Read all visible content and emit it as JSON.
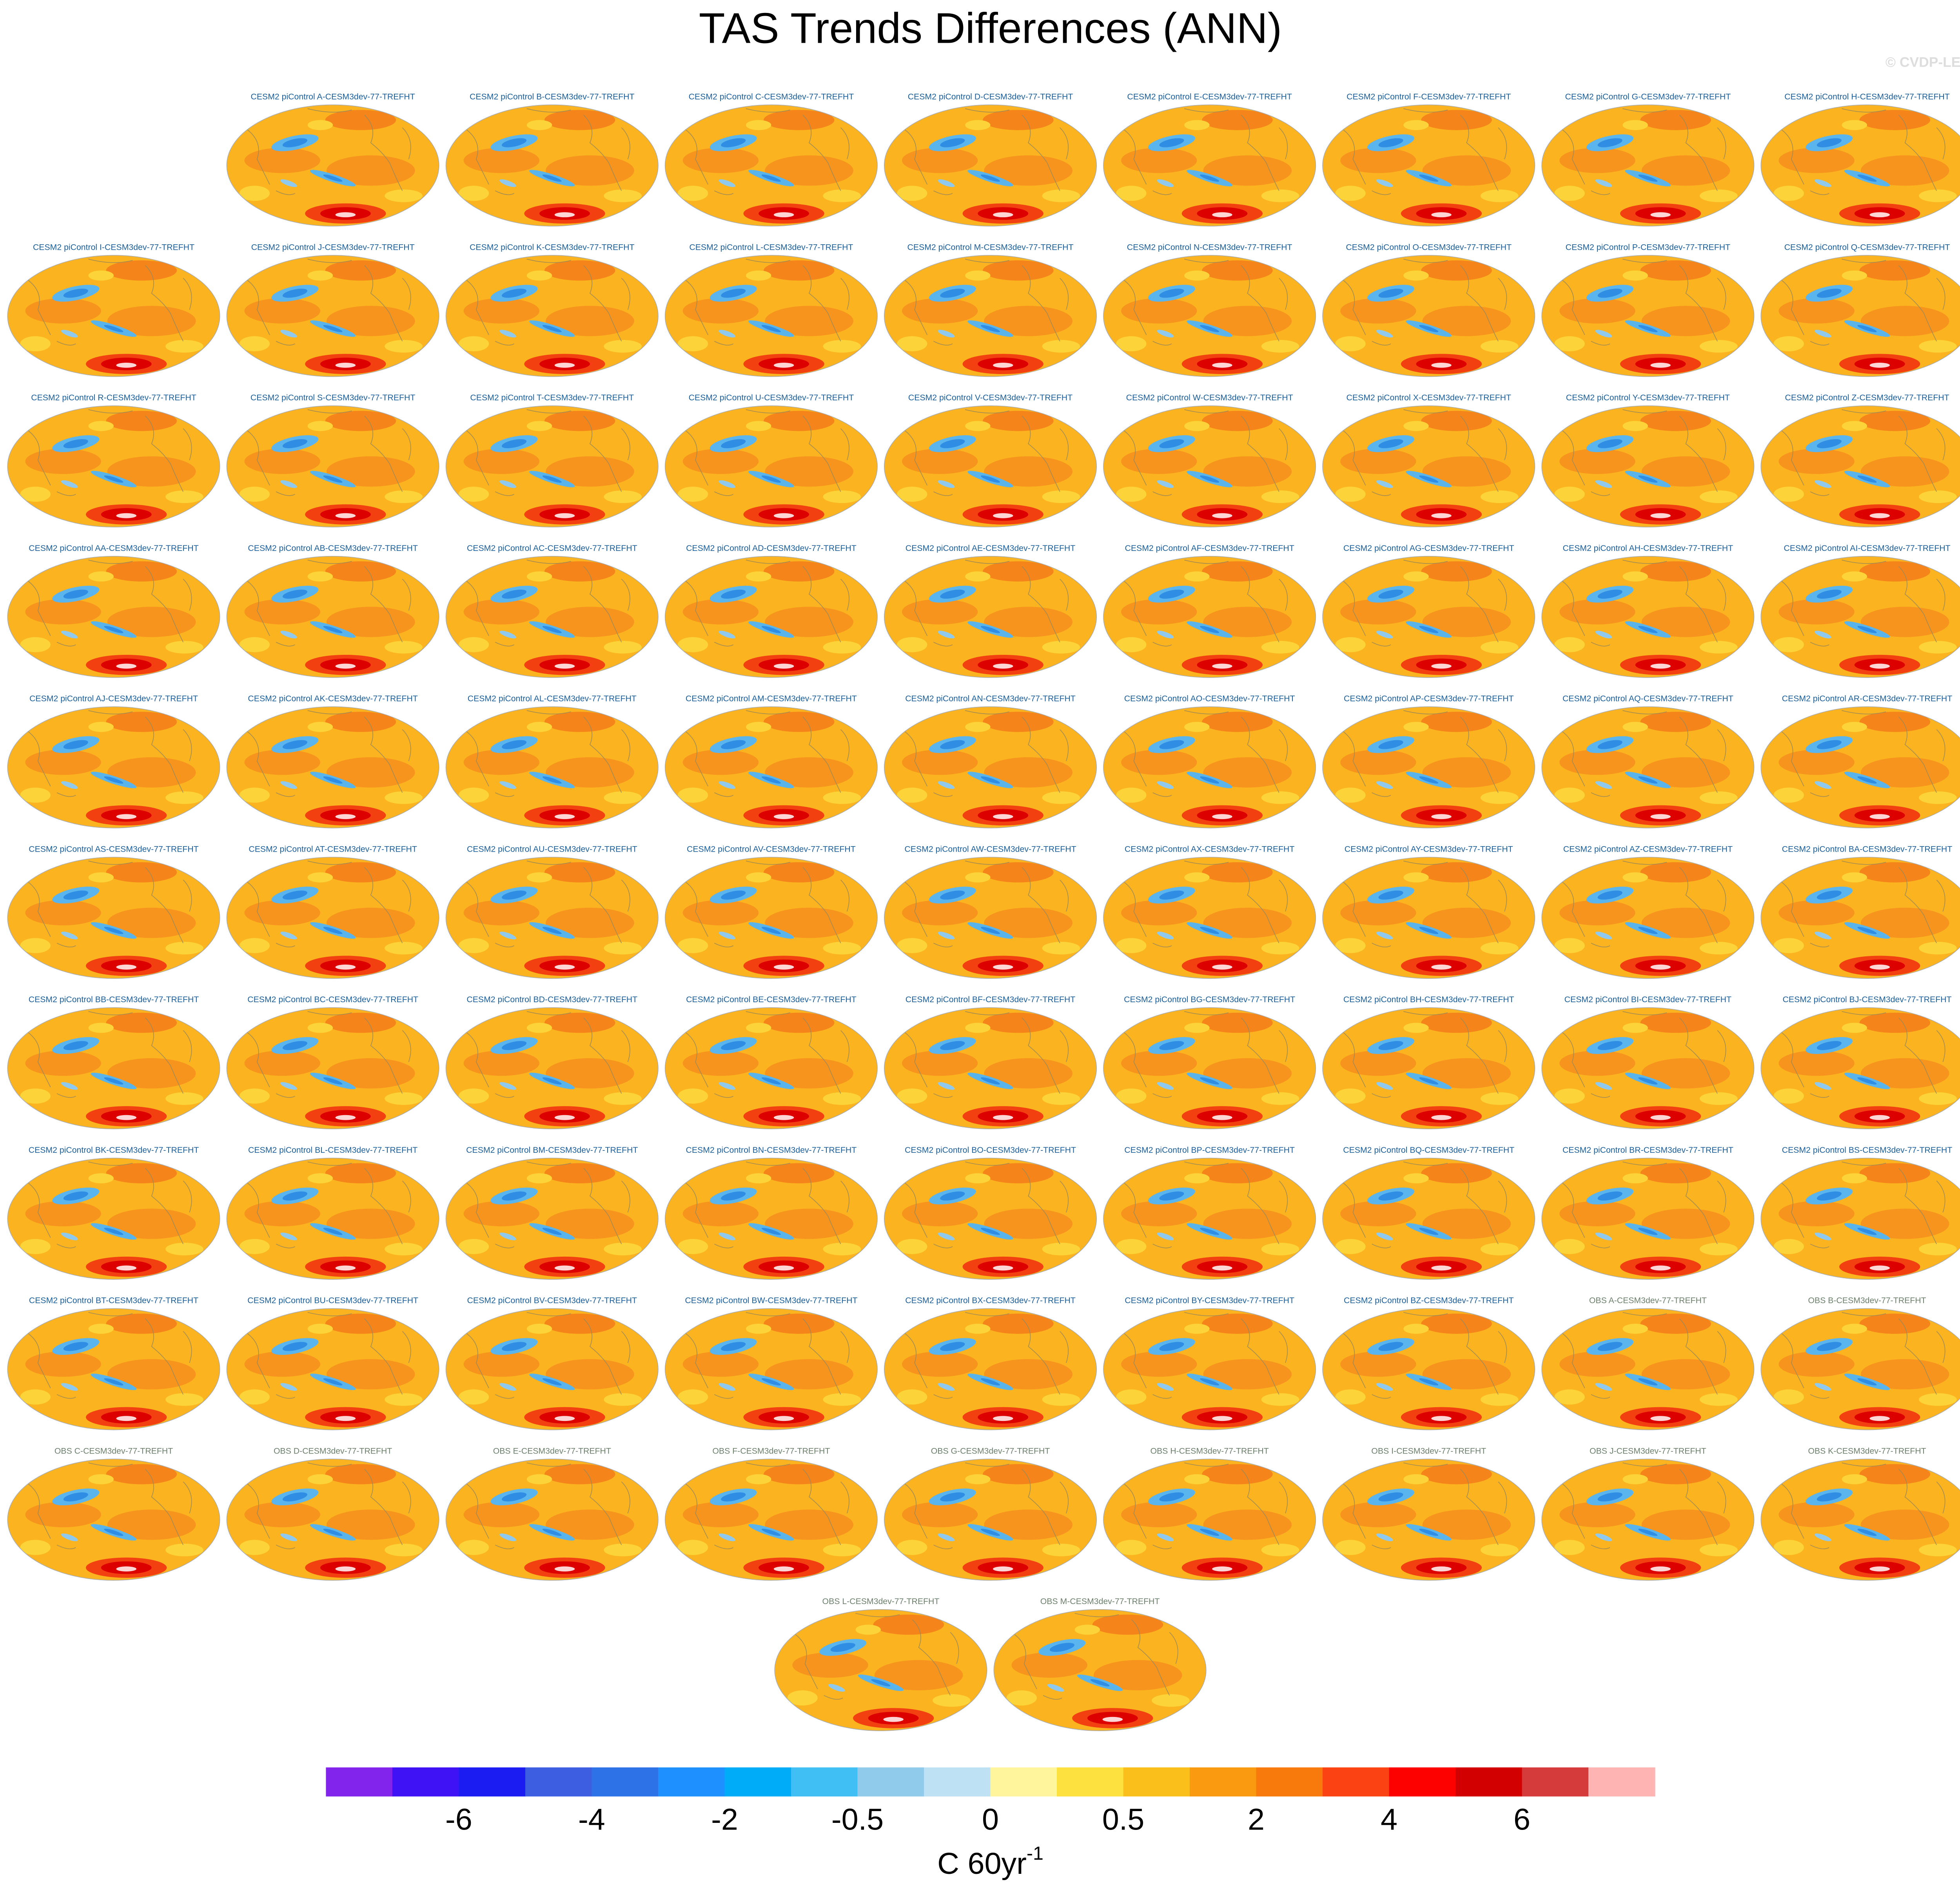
{
  "title": "TAS Trends Differences (ANN)",
  "watermark": "© CVDP-LE",
  "model_panels": [
    "CESM2 piControl A-CESM3dev-77-TREFHT",
    "CESM2 piControl B-CESM3dev-77-TREFHT",
    "CESM2 piControl C-CESM3dev-77-TREFHT",
    "CESM2 piControl D-CESM3dev-77-TREFHT",
    "CESM2 piControl E-CESM3dev-77-TREFHT",
    "CESM2 piControl F-CESM3dev-77-TREFHT",
    "CESM2 piControl G-CESM3dev-77-TREFHT",
    "CESM2 piControl H-CESM3dev-77-TREFHT",
    "CESM2 piControl I-CESM3dev-77-TREFHT",
    "CESM2 piControl J-CESM3dev-77-TREFHT",
    "CESM2 piControl K-CESM3dev-77-TREFHT",
    "CESM2 piControl L-CESM3dev-77-TREFHT",
    "CESM2 piControl M-CESM3dev-77-TREFHT",
    "CESM2 piControl N-CESM3dev-77-TREFHT",
    "CESM2 piControl O-CESM3dev-77-TREFHT",
    "CESM2 piControl P-CESM3dev-77-TREFHT",
    "CESM2 piControl Q-CESM3dev-77-TREFHT",
    "CESM2 piControl R-CESM3dev-77-TREFHT",
    "CESM2 piControl S-CESM3dev-77-TREFHT",
    "CESM2 piControl T-CESM3dev-77-TREFHT",
    "CESM2 piControl U-CESM3dev-77-TREFHT",
    "CESM2 piControl V-CESM3dev-77-TREFHT",
    "CESM2 piControl W-CESM3dev-77-TREFHT",
    "CESM2 piControl X-CESM3dev-77-TREFHT",
    "CESM2 piControl Y-CESM3dev-77-TREFHT",
    "CESM2 piControl Z-CESM3dev-77-TREFHT",
    "CESM2 piControl AA-CESM3dev-77-TREFHT",
    "CESM2 piControl AB-CESM3dev-77-TREFHT",
    "CESM2 piControl AC-CESM3dev-77-TREFHT",
    "CESM2 piControl AD-CESM3dev-77-TREFHT",
    "CESM2 piControl AE-CESM3dev-77-TREFHT",
    "CESM2 piControl AF-CESM3dev-77-TREFHT",
    "CESM2 piControl AG-CESM3dev-77-TREFHT",
    "CESM2 piControl AH-CESM3dev-77-TREFHT",
    "CESM2 piControl AI-CESM3dev-77-TREFHT",
    "CESM2 piControl AJ-CESM3dev-77-TREFHT",
    "CESM2 piControl AK-CESM3dev-77-TREFHT",
    "CESM2 piControl AL-CESM3dev-77-TREFHT",
    "CESM2 piControl AM-CESM3dev-77-TREFHT",
    "CESM2 piControl AN-CESM3dev-77-TREFHT",
    "CESM2 piControl AO-CESM3dev-77-TREFHT",
    "CESM2 piControl AP-CESM3dev-77-TREFHT",
    "CESM2 piControl AQ-CESM3dev-77-TREFHT",
    "CESM2 piControl AR-CESM3dev-77-TREFHT",
    "CESM2 piControl AS-CESM3dev-77-TREFHT",
    "CESM2 piControl AT-CESM3dev-77-TREFHT",
    "CESM2 piControl AU-CESM3dev-77-TREFHT",
    "CESM2 piControl AV-CESM3dev-77-TREFHT",
    "CESM2 piControl AW-CESM3dev-77-TREFHT",
    "CESM2 piControl AX-CESM3dev-77-TREFHT",
    "CESM2 piControl AY-CESM3dev-77-TREFHT",
    "CESM2 piControl AZ-CESM3dev-77-TREFHT",
    "CESM2 piControl BA-CESM3dev-77-TREFHT",
    "CESM2 piControl BB-CESM3dev-77-TREFHT",
    "CESM2 piControl BC-CESM3dev-77-TREFHT",
    "CESM2 piControl BD-CESM3dev-77-TREFHT",
    "CESM2 piControl BE-CESM3dev-77-TREFHT",
    "CESM2 piControl BF-CESM3dev-77-TREFHT",
    "CESM2 piControl BG-CESM3dev-77-TREFHT",
    "CESM2 piControl BH-CESM3dev-77-TREFHT",
    "CESM2 piControl BI-CESM3dev-77-TREFHT",
    "CESM2 piControl BJ-CESM3dev-77-TREFHT",
    "CESM2 piControl BK-CESM3dev-77-TREFHT",
    "CESM2 piControl BL-CESM3dev-77-TREFHT",
    "CESM2 piControl BM-CESM3dev-77-TREFHT",
    "CESM2 piControl BN-CESM3dev-77-TREFHT",
    "CESM2 piControl BO-CESM3dev-77-TREFHT",
    "CESM2 piControl BP-CESM3dev-77-TREFHT",
    "CESM2 piControl BQ-CESM3dev-77-TREFHT",
    "CESM2 piControl BR-CESM3dev-77-TREFHT",
    "CESM2 piControl BS-CESM3dev-77-TREFHT",
    "CESM2 piControl BT-CESM3dev-77-TREFHT",
    "CESM2 piControl BU-CESM3dev-77-TREFHT",
    "CESM2 piControl BV-CESM3dev-77-TREFHT",
    "CESM2 piControl BW-CESM3dev-77-TREFHT",
    "CESM2 piControl BX-CESM3dev-77-TREFHT",
    "CESM2 piControl BY-CESM3dev-77-TREFHT",
    "CESM2 piControl BZ-CESM3dev-77-TREFHT"
  ],
  "obs_panels": [
    "OBS A-CESM3dev-77-TREFHT",
    "OBS B-CESM3dev-77-TREFHT",
    "OBS C-CESM3dev-77-TREFHT",
    "OBS D-CESM3dev-77-TREFHT",
    "OBS E-CESM3dev-77-TREFHT",
    "OBS F-CESM3dev-77-TREFHT",
    "OBS G-CESM3dev-77-TREFHT",
    "OBS H-CESM3dev-77-TREFHT",
    "OBS I-CESM3dev-77-TREFHT",
    "OBS J-CESM3dev-77-TREFHT",
    "OBS K-CESM3dev-77-TREFHT",
    "OBS L-CESM3dev-77-TREFHT",
    "OBS M-CESM3dev-77-TREFHT"
  ],
  "colorbar": {
    "colors": [
      "#8224ec",
      "#3f12f5",
      "#1a1cf2",
      "#3d5ee0",
      "#2e72e8",
      "#1e90ff",
      "#00abf7",
      "#40bff4",
      "#90cbec",
      "#bfe1f4",
      "#fff59c",
      "#fde13f",
      "#fbbf1c",
      "#f99a10",
      "#f87a0c",
      "#fa4212",
      "#fd0000",
      "#d20000",
      "#d63b3b",
      "#ffb4b4"
    ],
    "ticks": [
      -6,
      -4,
      -2,
      -0.5,
      0,
      0.5,
      2,
      4,
      6
    ],
    "units": "C 60yr",
    "units_exponent": "-1"
  }
}
